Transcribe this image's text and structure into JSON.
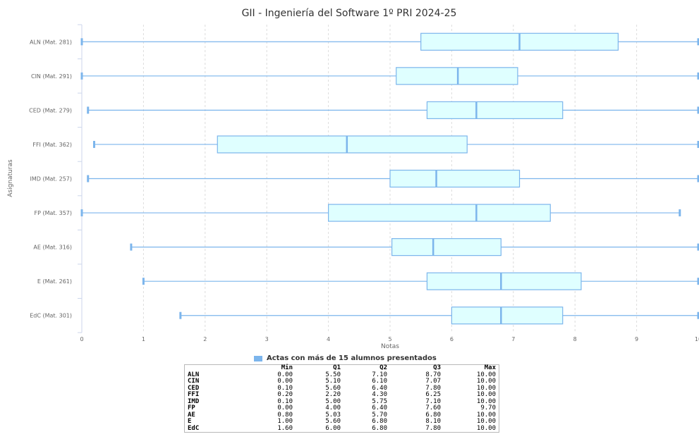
{
  "chart_data": {
    "type": "boxplot",
    "orientation": "horizontal",
    "title": "GII - Ingeniería del Software 1º PRI 2024-25",
    "xlabel": "Notas",
    "ylabel": "Asignaturas",
    "xlim": [
      0,
      10
    ],
    "xticks": [
      "0",
      "1",
      "2",
      "3",
      "4",
      "5",
      "6",
      "7",
      "8",
      "9",
      "10"
    ],
    "grid": "vertical dashed",
    "legend": "Actas con más de 15 alumnos presentados",
    "colors": {
      "box_fill": "#dfffff",
      "box_stroke": "#7cb5ec",
      "legend_swatch": "#7cb5ec"
    },
    "categories": [
      "ALN (Mat. 281)",
      "CIN (Mat. 291)",
      "CED (Mat. 279)",
      "FFI (Mat. 362)",
      "IMD (Mat. 257)",
      "FP (Mat. 357)",
      "AE (Mat. 316)",
      "E (Mat. 261)",
      "EdC (Mat. 301)"
    ],
    "series": [
      {
        "min": 0.0,
        "q1": 5.5,
        "q2": 7.1,
        "q3": 8.7,
        "max": 10.0
      },
      {
        "min": 0.0,
        "q1": 5.1,
        "q2": 6.1,
        "q3": 7.07,
        "max": 10.0
      },
      {
        "min": 0.1,
        "q1": 5.6,
        "q2": 6.4,
        "q3": 7.8,
        "max": 10.0
      },
      {
        "min": 0.2,
        "q1": 2.2,
        "q2": 4.3,
        "q3": 6.25,
        "max": 10.0
      },
      {
        "min": 0.1,
        "q1": 5.0,
        "q2": 5.75,
        "q3": 7.1,
        "max": 10.0
      },
      {
        "min": 0.0,
        "q1": 4.0,
        "q2": 6.4,
        "q3": 7.6,
        "max": 9.7
      },
      {
        "min": 0.8,
        "q1": 5.03,
        "q2": 5.7,
        "q3": 6.8,
        "max": 10.0
      },
      {
        "min": 1.0,
        "q1": 5.6,
        "q2": 6.8,
        "q3": 8.1,
        "max": 10.0
      },
      {
        "min": 1.6,
        "q1": 6.0,
        "q2": 6.8,
        "q3": 7.8,
        "max": 10.0
      }
    ]
  },
  "table": {
    "headers": [
      "",
      "Min",
      "Q1",
      "Q2",
      "Q3",
      "Max"
    ],
    "rows": [
      [
        "ALN",
        "0.00",
        "5.50",
        "7.10",
        "8.70",
        "10.00"
      ],
      [
        "CIN",
        "0.00",
        "5.10",
        "6.10",
        "7.07",
        "10.00"
      ],
      [
        "CED",
        "0.10",
        "5.60",
        "6.40",
        "7.80",
        "10.00"
      ],
      [
        "FFI",
        "0.20",
        "2.20",
        "4.30",
        "6.25",
        "10.00"
      ],
      [
        "IMD",
        "0.10",
        "5.00",
        "5.75",
        "7.10",
        "10.00"
      ],
      [
        "FP",
        "0.00",
        "4.00",
        "6.40",
        "7.60",
        "9.70"
      ],
      [
        "AE",
        "0.80",
        "5.03",
        "5.70",
        "6.80",
        "10.00"
      ],
      [
        "E",
        "1.00",
        "5.60",
        "6.80",
        "8.10",
        "10.00"
      ],
      [
        "EdC",
        "1.60",
        "6.00",
        "6.80",
        "7.80",
        "10.00"
      ]
    ]
  }
}
